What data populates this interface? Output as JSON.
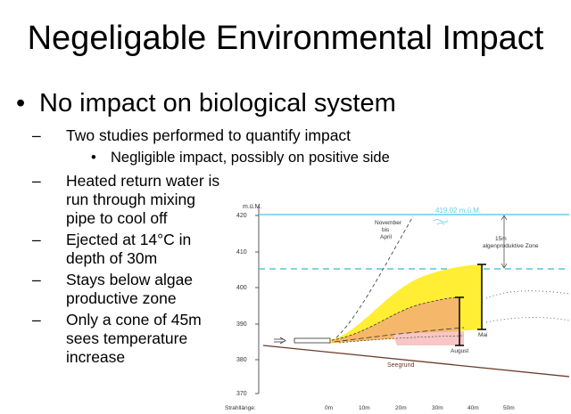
{
  "slide": {
    "title": "Negeligable Environmental Impact",
    "bullet_main": "No impact on biological system",
    "sub_bullets": [
      {
        "lines": [
          "Two studies performed to quantify impact"
        ]
      },
      {
        "lines": [
          "Heated return water is",
          "run through mixing",
          "pipe to cool off"
        ]
      },
      {
        "lines": [
          "Ejected at 14°C in",
          "depth of 30m"
        ]
      },
      {
        "lines": [
          "Stays below algae",
          "productive zone"
        ]
      },
      {
        "lines": [
          "Only a cone of 45m",
          "sees temperature",
          "increase"
        ]
      }
    ],
    "sub_sub_bullet": "Negligible impact, possibly on positive side",
    "bullet_glyph": "•",
    "dash_glyph": "–"
  },
  "figure": {
    "y_unit": "m.ü.M.",
    "y_ticks": [
      "420",
      "410",
      "400",
      "390",
      "380",
      "370"
    ],
    "x_axis_label": "Strahllänge:",
    "x_ticks": [
      "0m",
      "10m",
      "20m",
      "30m",
      "40m",
      "50m"
    ],
    "surface_label": "419.02 m.ü.M.",
    "zone_lines": [
      "15m",
      "algenproduktive Zone"
    ],
    "november_lines": [
      "November",
      "bis",
      "April"
    ],
    "mai_label": "Mai",
    "august_label": "August",
    "seegrund_label": "Seegrund",
    "colors": {
      "surface": "#66ccee",
      "zone_dash": "#33bbcc",
      "plume_yellow": "#ffee33",
      "plume_orange": "#f5b86a",
      "plume_pink": "#f7c6c6",
      "ground": "#6b3a2a"
    }
  }
}
